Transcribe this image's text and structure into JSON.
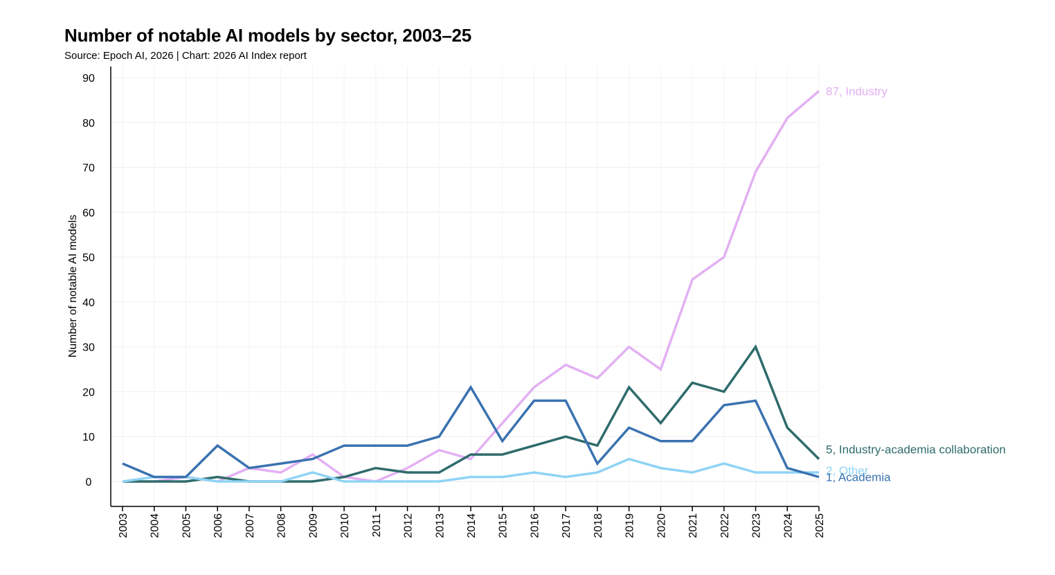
{
  "header": {
    "title": "Number of notable AI models by sector, 2003–25",
    "subtitle": "Source: Epoch AI, 2026 | Chart: 2026 AI Index report"
  },
  "chart_data": {
    "type": "line",
    "title": "Number of notable AI models by sector, 2003–25",
    "subtitle": "Source: Epoch AI, 2026 | Chart: 2026 AI Index report",
    "xlabel": "",
    "ylabel": "Number of notable AI models",
    "ylim": [
      -5,
      92
    ],
    "yticks": [
      0,
      10,
      20,
      30,
      40,
      50,
      60,
      70,
      80,
      90
    ],
    "grid": true,
    "legend": "end-of-line labels (right)",
    "x": [
      "2003",
      "2004",
      "2005",
      "2006",
      "2007",
      "2008",
      "2009",
      "2010",
      "2011",
      "2012",
      "2013",
      "2014",
      "2015",
      "2016",
      "2017",
      "2018",
      "2019",
      "2020",
      "2021",
      "2022",
      "2023",
      "2024",
      "2025"
    ],
    "series": [
      {
        "name": "Industry",
        "end_label": "87, Industry",
        "color": "#e3b0f3",
        "values": [
          0,
          0,
          1,
          0,
          3,
          2,
          6,
          1,
          0,
          3,
          7,
          5,
          13,
          21,
          26,
          23,
          30,
          25,
          45,
          50,
          69,
          81,
          87
        ]
      },
      {
        "name": "Industry-academia collaboration",
        "end_label": "5, Industry-academia collaboration",
        "color": "#2f6b6b",
        "values": [
          0,
          0,
          0,
          1,
          0,
          0,
          0,
          1,
          3,
          2,
          2,
          6,
          6,
          8,
          10,
          8,
          21,
          13,
          22,
          20,
          30,
          12,
          5
        ]
      },
      {
        "name": "Other",
        "end_label": "2, Other",
        "color": "#8fd3f5",
        "values": [
          0,
          1,
          1,
          0,
          0,
          0,
          2,
          0,
          0,
          0,
          0,
          1,
          1,
          2,
          1,
          2,
          5,
          3,
          2,
          4,
          2,
          2,
          2
        ]
      },
      {
        "name": "Academia",
        "end_label": "1, Academia",
        "color": "#3a72b0",
        "values": [
          4,
          1,
          1,
          8,
          3,
          4,
          5,
          8,
          8,
          8,
          10,
          21,
          9,
          18,
          18,
          4,
          12,
          9,
          9,
          17,
          18,
          3,
          1
        ]
      }
    ]
  }
}
